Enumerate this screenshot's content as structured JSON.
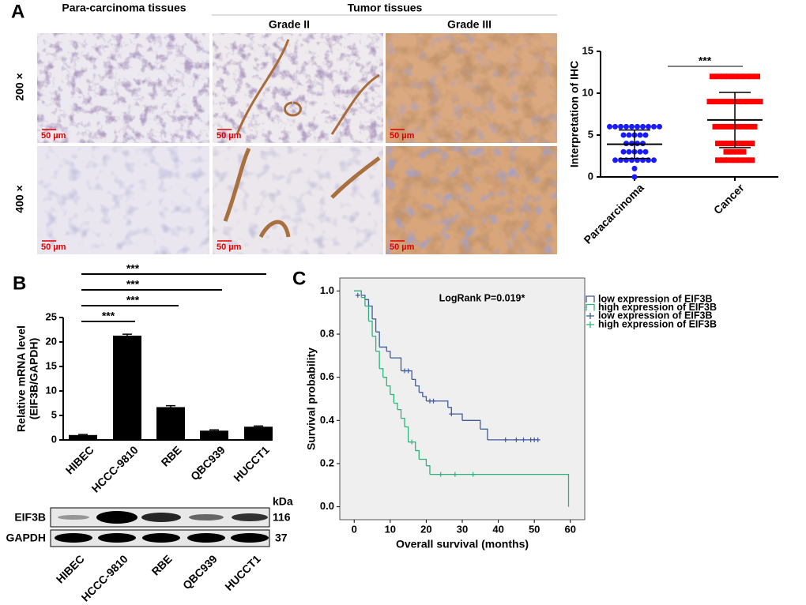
{
  "panel_labels": [
    "A",
    "B",
    "C"
  ],
  "ihc": {
    "column_headers": [
      "Para-carcinoma tissues",
      "Tumor tissues"
    ],
    "grades": [
      "Grade II",
      "Grade III"
    ],
    "magnifications": [
      "200 ×",
      "400 ×"
    ],
    "scale_bar": "50 µm"
  },
  "western": {
    "unit": "kDa",
    "proteins": [
      {
        "name": "EIF3B",
        "kda": 116
      },
      {
        "name": "GAPDH",
        "kda": 37
      }
    ],
    "lanes": [
      "HIBEC",
      "HCCC-9810",
      "RBE",
      "QBC939",
      "HUCCT1"
    ]
  },
  "chart_data": [
    {
      "type": "dotplot",
      "ylabel": "Interpretation of IHC",
      "categories": [
        "Paracarcinoma",
        "Cancer"
      ],
      "groups": [
        {
          "color": "#1a1aff",
          "marker": "circle",
          "values": [
            6,
            6,
            6,
            6,
            6,
            6,
            6,
            6,
            6,
            6,
            5,
            5,
            5,
            5,
            5,
            4,
            4,
            4,
            4,
            3,
            3,
            3,
            3,
            3,
            2,
            2,
            2,
            2,
            2,
            2,
            2,
            2,
            1,
            0
          ]
        },
        {
          "color": "#ff0000",
          "marker": "square",
          "values": [
            12,
            12,
            12,
            12,
            12,
            12,
            12,
            12,
            12,
            9,
            9,
            9,
            9,
            9,
            9,
            9,
            9,
            9,
            9,
            6,
            6,
            6,
            6,
            6,
            6,
            6,
            6,
            4,
            4,
            4,
            4,
            4,
            4,
            4,
            3,
            3,
            3,
            3,
            2,
            2,
            2,
            2,
            2,
            2,
            2
          ]
        }
      ],
      "means": [
        3.9,
        6.8
      ],
      "errors": [
        1.7,
        3.3
      ],
      "significance": "***",
      "ylim": [
        0,
        15
      ],
      "yticks": [
        0,
        5,
        10,
        15
      ]
    },
    {
      "type": "bar",
      "ylabel": [
        "Relative mRNA level",
        "(EIF3B/GAPDH)"
      ],
      "categories": [
        "HIBEC",
        "HCCC-9810",
        "RBE",
        "QBC939",
        "HUCCT1"
      ],
      "values": [
        1.0,
        21.3,
        6.7,
        1.9,
        2.7
      ],
      "errors": [
        0.1,
        0.3,
        0.3,
        0.15,
        0.15
      ],
      "color": "#000000",
      "ylim": [
        0,
        25
      ],
      "yticks": [
        0,
        5,
        10,
        15,
        20,
        25
      ],
      "comparisons": [
        {
          "groups": [
            "HIBEC",
            "HCCC-9810"
          ],
          "label": "***"
        },
        {
          "groups": [
            "HIBEC",
            "RBE"
          ],
          "label": "***"
        },
        {
          "groups": [
            "HIBEC",
            "QBC939"
          ],
          "label": "***"
        },
        {
          "groups": [
            "HIBEC",
            "HUCCT1"
          ],
          "label": "***"
        }
      ]
    },
    {
      "type": "survival",
      "xlabel": "Overall survival (months)",
      "ylabel": "Survival probability",
      "annotation": "LogRank P=0.019*",
      "xlim": [
        -4,
        64
      ],
      "ylim": [
        -0.06,
        1.06
      ],
      "xticks": [
        0,
        10,
        20,
        30,
        40,
        50,
        60
      ],
      "yticks": [
        {
          "value": 0,
          "label": "0.0"
        },
        0.2,
        0.4,
        0.6,
        0.8,
        {
          "value": 1,
          "label": "1.0"
        }
      ],
      "series": [
        {
          "name": "low expression of EIF3B",
          "censor_name": "low expression of EIF3B",
          "color": "#3f5b9a",
          "x": [
            0,
            2,
            3,
            4,
            5,
            6,
            7,
            9,
            10,
            13,
            16,
            17,
            18,
            19,
            20,
            26,
            27,
            30,
            35,
            37,
            51
          ],
          "y": [
            1,
            0.98,
            0.96,
            0.93,
            0.87,
            0.81,
            0.74,
            0.72,
            0.69,
            0.63,
            0.59,
            0.56,
            0.53,
            0.51,
            0.49,
            0.46,
            0.43,
            0.4,
            0.36,
            0.31,
            0.31
          ],
          "censor_x": [
            1,
            14,
            15,
            21,
            22,
            27,
            42,
            45,
            47,
            49,
            50,
            51
          ],
          "censor_y": [
            0.98,
            0.63,
            0.63,
            0.49,
            0.49,
            0.43,
            0.31,
            0.31,
            0.31,
            0.31,
            0.31,
            0.31
          ]
        },
        {
          "name": "high expression of EIF3B",
          "censor_name": "high expression of EIF3B",
          "color": "#2db37a",
          "x": [
            0,
            2,
            3,
            4,
            5,
            6,
            7,
            8,
            9,
            10,
            11,
            12,
            13,
            14,
            15,
            17,
            18,
            20,
            21,
            59.5
          ],
          "y": [
            1,
            0.97,
            0.93,
            0.86,
            0.79,
            0.72,
            0.64,
            0.6,
            0.56,
            0.52,
            0.48,
            0.45,
            0.41,
            0.37,
            0.3,
            0.26,
            0.22,
            0.19,
            0.15,
            0
          ],
          "censor_x": [
            16,
            24,
            28,
            33
          ],
          "censor_y": [
            0.3,
            0.15,
            0.15,
            0.15
          ]
        }
      ]
    }
  ]
}
